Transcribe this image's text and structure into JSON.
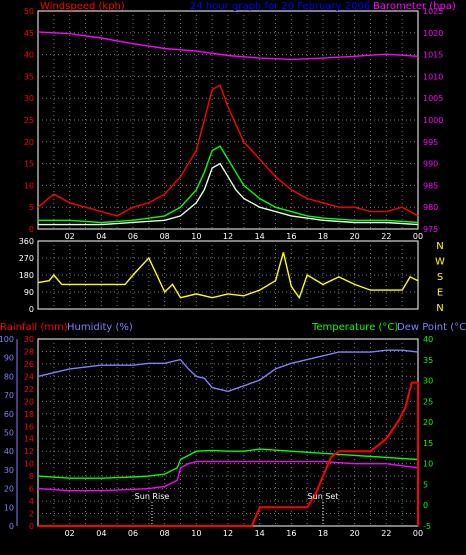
{
  "chart_data": [
    {
      "type": "line",
      "title": "24 hour graph for  20 February 2006",
      "ylabel_left": "Windspeed (kph)",
      "ylabel_right": "Barometer (hpa)",
      "x_ticks": [
        "02",
        "04",
        "06",
        "08",
        "10",
        "12",
        "14",
        "16",
        "18",
        "20",
        "22",
        "00"
      ],
      "y_left_ticks": [
        "0",
        "5",
        "10",
        "15",
        "20",
        "25",
        "30",
        "35",
        "40",
        "45",
        "50"
      ],
      "y_left_range": [
        0,
        50
      ],
      "y_right_ticks": [
        "975",
        "980",
        "985",
        "990",
        "995",
        "1000",
        "1005",
        "1010",
        "1015",
        "1020",
        "1025"
      ],
      "y_right_range": [
        975,
        1025
      ],
      "grid": true,
      "series": [
        {
          "key": "barometer",
          "color": "#ff00ff",
          "points": [
            [
              0,
              1020.2
            ],
            [
              2,
              1019.8
            ],
            [
              4,
              1018.8
            ],
            [
              6,
              1017.5
            ],
            [
              8,
              1016.4
            ],
            [
              10,
              1015.8
            ],
            [
              12,
              1014.8
            ],
            [
              14,
              1014.2
            ],
            [
              16,
              1013.9
            ],
            [
              18,
              1014.2
            ],
            [
              20,
              1014.6
            ],
            [
              22,
              1015.1
            ],
            [
              24,
              1014.6
            ]
          ]
        },
        {
          "key": "gust",
          "color": "#ff0000",
          "points": [
            [
              0,
              5
            ],
            [
              1,
              8
            ],
            [
              2,
              6
            ],
            [
              3,
              5
            ],
            [
              4,
              4
            ],
            [
              5,
              3
            ],
            [
              6,
              5
            ],
            [
              7,
              6
            ],
            [
              8,
              8
            ],
            [
              9,
              12
            ],
            [
              10,
              18
            ],
            [
              10.5,
              25
            ],
            [
              11,
              32
            ],
            [
              11.5,
              33
            ],
            [
              12,
              28
            ],
            [
              12.5,
              24
            ],
            [
              13,
              20
            ],
            [
              14,
              16
            ],
            [
              15,
              12
            ],
            [
              16,
              9
            ],
            [
              17,
              7
            ],
            [
              18,
              6
            ],
            [
              19,
              5
            ],
            [
              20,
              5
            ],
            [
              21,
              4
            ],
            [
              22,
              4
            ],
            [
              23,
              5
            ],
            [
              24,
              3
            ]
          ]
        },
        {
          "key": "average",
          "color": "#00ff00",
          "points": [
            [
              0,
              2
            ],
            [
              2,
              2
            ],
            [
              4,
              1.5
            ],
            [
              6,
              2
            ],
            [
              8,
              3
            ],
            [
              9,
              5
            ],
            [
              10,
              9
            ],
            [
              10.5,
              13
            ],
            [
              11,
              18
            ],
            [
              11.5,
              19
            ],
            [
              12,
              16
            ],
            [
              12.5,
              13
            ],
            [
              13,
              10
            ],
            [
              14,
              7
            ],
            [
              15,
              5
            ],
            [
              16,
              4
            ],
            [
              17,
              3
            ],
            [
              18,
              2.5
            ],
            [
              20,
              2
            ],
            [
              22,
              2
            ],
            [
              24,
              1.5
            ]
          ]
        },
        {
          "key": "mean",
          "color": "#e0ffe0",
          "points": [
            [
              0,
              1
            ],
            [
              4,
              1
            ],
            [
              8,
              2
            ],
            [
              9,
              3
            ],
            [
              10,
              6
            ],
            [
              10.5,
              9
            ],
            [
              11,
              14
            ],
            [
              11.5,
              15
            ],
            [
              12,
              12
            ],
            [
              12.5,
              9
            ],
            [
              13,
              7
            ],
            [
              14,
              5
            ],
            [
              15,
              4
            ],
            [
              16,
              3
            ],
            [
              18,
              2
            ],
            [
              20,
              1.5
            ],
            [
              22,
              1.5
            ],
            [
              24,
              1
            ]
          ]
        }
      ]
    },
    {
      "type": "line",
      "y_left_ticks": [
        "0",
        "90",
        "180",
        "270",
        "360"
      ],
      "y_left_range": [
        0,
        360
      ],
      "y_right_labels": [
        "N",
        "W",
        "S",
        "E",
        "N"
      ],
      "grid": true,
      "series": [
        {
          "key": "wind-direction",
          "color": "#ffff00",
          "points": [
            [
              0,
              140
            ],
            [
              0.7,
              150
            ],
            [
              1,
              180
            ],
            [
              1.5,
              130
            ],
            [
              2,
              130
            ],
            [
              4,
              130
            ],
            [
              5.5,
              130
            ],
            [
              6,
              180
            ],
            [
              7,
              270
            ],
            [
              7.5,
              180
            ],
            [
              8,
              90
            ],
            [
              8.5,
              130
            ],
            [
              9,
              60
            ],
            [
              10,
              80
            ],
            [
              11,
              60
            ],
            [
              12,
              80
            ],
            [
              13,
              70
            ],
            [
              14,
              100
            ],
            [
              15,
              150
            ],
            [
              15.5,
              300
            ],
            [
              16,
              120
            ],
            [
              16.5,
              60
            ],
            [
              17,
              180
            ],
            [
              18,
              130
            ],
            [
              19,
              170
            ],
            [
              20,
              130
            ],
            [
              21,
              100
            ],
            [
              22,
              100
            ],
            [
              23,
              100
            ],
            [
              23.5,
              170
            ],
            [
              24,
              150
            ]
          ]
        }
      ]
    },
    {
      "type": "line",
      "ylabel_left_1": "Rainfall (mm)",
      "ylabel_left_2": "Humidity (%)",
      "ylabel_right_1": "Temperature (°C)",
      "ylabel_right_2": "Dew Point (°C)",
      "rain_ticks": [
        "0",
        "2",
        "4",
        "6",
        "8",
        "10",
        "12",
        "14",
        "16",
        "18",
        "20",
        "22",
        "24",
        "26",
        "28",
        "30"
      ],
      "rain_range": [
        0,
        30
      ],
      "humidity_ticks": [
        "0",
        "10",
        "20",
        "30",
        "40",
        "50",
        "60",
        "70",
        "80",
        "90",
        "100"
      ],
      "humidity_range": [
        0,
        100
      ],
      "temp_ticks": [
        "-5",
        "0",
        "5",
        "10",
        "15",
        "20",
        "25",
        "30",
        "35",
        "40"
      ],
      "temp_range": [
        -5,
        40
      ],
      "annotations": [
        {
          "label": "Sun Rise",
          "x": 7.2
        },
        {
          "label": "Sun Set",
          "x": 18.0
        }
      ],
      "grid": true,
      "series": [
        {
          "key": "humidity",
          "color": "#7f7fff",
          "axis": "humidity",
          "points": [
            [
              0,
              80
            ],
            [
              1,
              82
            ],
            [
              2,
              84
            ],
            [
              3,
              85
            ],
            [
              4,
              86
            ],
            [
              5,
              86
            ],
            [
              6,
              86
            ],
            [
              7,
              87
            ],
            [
              8,
              87
            ],
            [
              9,
              89
            ],
            [
              9.5,
              84
            ],
            [
              10,
              80
            ],
            [
              10.5,
              79
            ],
            [
              11,
              74
            ],
            [
              12,
              72
            ],
            [
              13,
              75
            ],
            [
              14,
              78
            ],
            [
              15,
              84
            ],
            [
              16,
              87
            ],
            [
              17,
              89
            ],
            [
              18,
              91
            ],
            [
              19,
              93
            ],
            [
              20,
              93
            ],
            [
              21,
              93
            ],
            [
              22,
              94
            ],
            [
              23,
              94
            ],
            [
              24,
              93
            ]
          ]
        },
        {
          "key": "temperature",
          "color": "#00ff00",
          "axis": "temp",
          "points": [
            [
              0,
              7
            ],
            [
              2,
              6.5
            ],
            [
              4,
              6.5
            ],
            [
              6,
              6.8
            ],
            [
              7,
              7
            ],
            [
              8,
              7.5
            ],
            [
              8.8,
              9
            ],
            [
              9,
              11
            ],
            [
              9.5,
              12
            ],
            [
              10,
              13
            ],
            [
              11,
              13.2
            ],
            [
              12,
              13
            ],
            [
              13,
              13
            ],
            [
              14,
              13.5
            ],
            [
              16,
              13
            ],
            [
              18,
              12.5
            ],
            [
              20,
              12
            ],
            [
              22,
              11.5
            ],
            [
              24,
              11
            ]
          ]
        },
        {
          "key": "dew-point",
          "color": "#ff00ff",
          "axis": "temp",
          "points": [
            [
              0,
              4
            ],
            [
              2,
              3.5
            ],
            [
              4,
              3.5
            ],
            [
              6,
              3.8
            ],
            [
              7,
              4
            ],
            [
              8,
              4.5
            ],
            [
              8.8,
              6
            ],
            [
              9,
              9
            ],
            [
              9.5,
              10
            ],
            [
              10,
              10.5
            ],
            [
              11,
              10.5
            ],
            [
              12,
              10.5
            ],
            [
              13,
              10.5
            ],
            [
              14,
              10.5
            ],
            [
              16,
              10.5
            ],
            [
              18,
              10.5
            ],
            [
              20,
              10
            ],
            [
              22,
              10
            ],
            [
              24,
              9
            ]
          ]
        },
        {
          "key": "rainfall",
          "color": "#ff0000",
          "axis": "rain",
          "points": [
            [
              0,
              0
            ],
            [
              13,
              0
            ],
            [
              13.5,
              0
            ],
            [
              14,
              3
            ],
            [
              15,
              3
            ],
            [
              17,
              3
            ],
            [
              17.5,
              5
            ],
            [
              18,
              8
            ],
            [
              18.5,
              11
            ],
            [
              19,
              12
            ],
            [
              20,
              12
            ],
            [
              21,
              12
            ],
            [
              21.5,
              13
            ],
            [
              22,
              14
            ],
            [
              22.8,
              17
            ],
            [
              23.2,
              19
            ],
            [
              23.6,
              23
            ],
            [
              24,
              23
            ],
            [
              24,
              0
            ]
          ]
        }
      ]
    }
  ]
}
